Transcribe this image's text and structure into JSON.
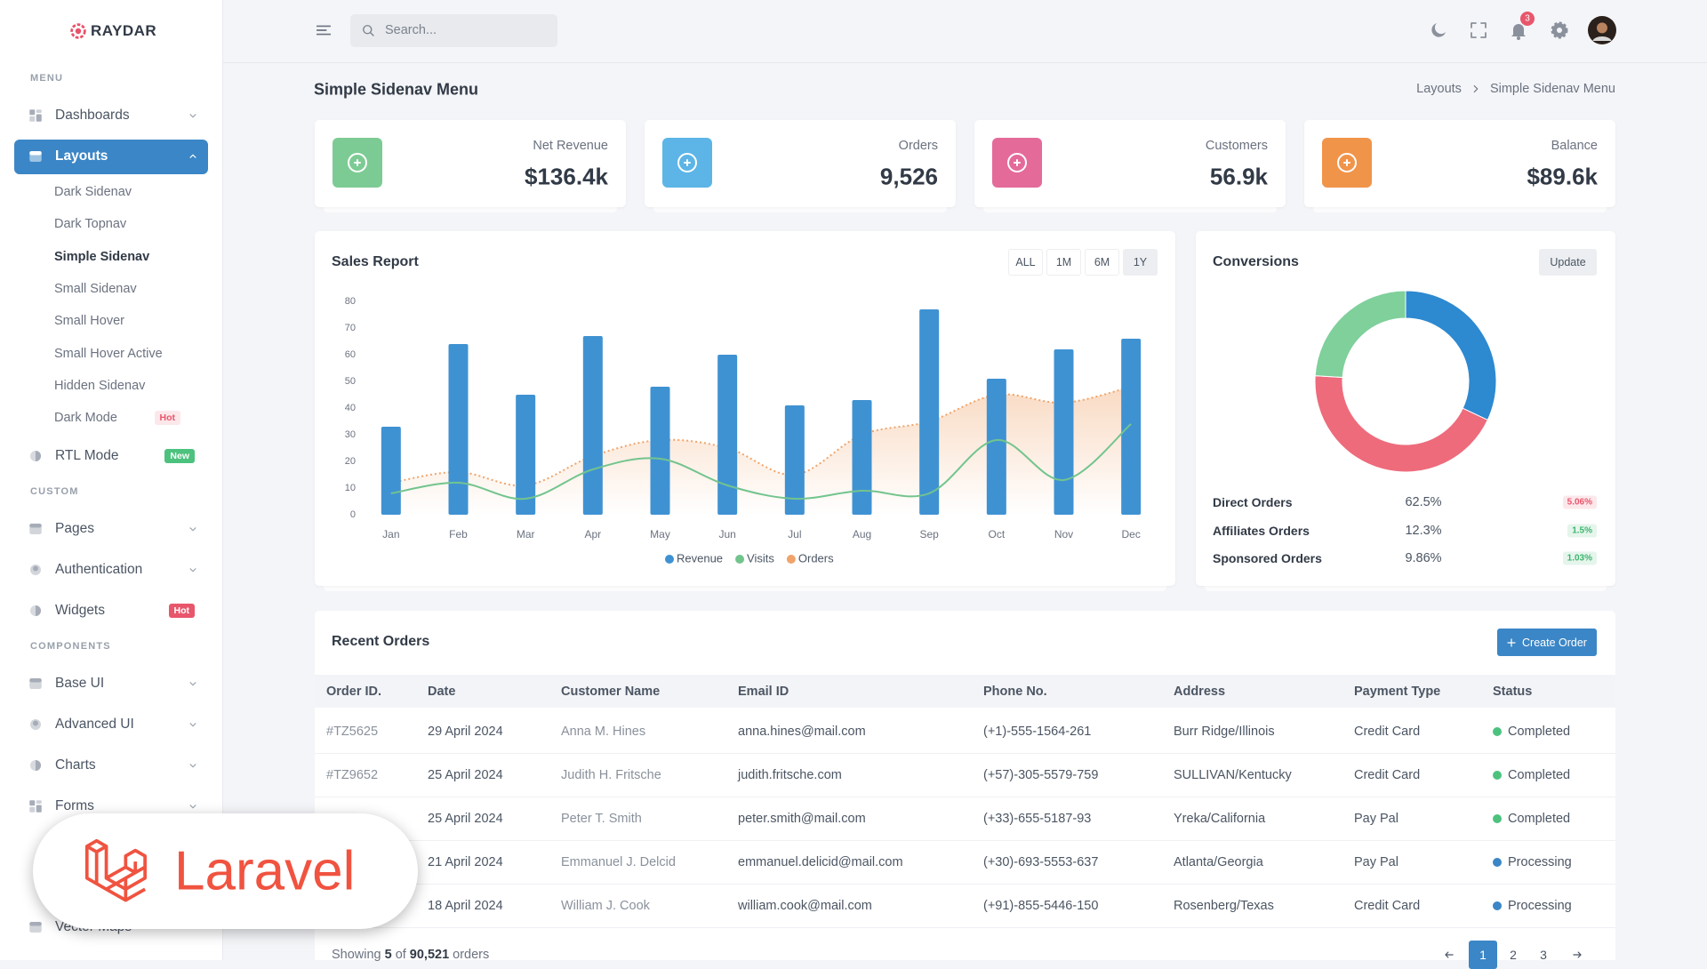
{
  "sidebar": {
    "brand": "RAYDAR",
    "sections": [
      {
        "title": "MENU",
        "items": [
          {
            "label": "Dashboards",
            "chevron": true
          },
          {
            "label": "Layouts",
            "chevron": true,
            "active": true,
            "children": [
              {
                "label": "Dark Sidenav"
              },
              {
                "label": "Dark Topnav"
              },
              {
                "label": "Simple Sidenav",
                "active": true
              },
              {
                "label": "Small Sidenav"
              },
              {
                "label": "Small Hover"
              },
              {
                "label": "Small Hover Active"
              },
              {
                "label": "Hidden Sidenav"
              },
              {
                "label": "Dark Mode",
                "badge": "Hot",
                "badge_color": "#e8566c"
              }
            ]
          },
          {
            "label": "RTL Mode",
            "badge": "New",
            "badge_color": "#4cc27e"
          }
        ]
      },
      {
        "title": "CUSTOM",
        "items": [
          {
            "label": "Pages",
            "chevron": true
          },
          {
            "label": "Authentication",
            "chevron": true
          },
          {
            "label": "Widgets",
            "badge": "Hot",
            "badge_color": "#e8566c"
          }
        ]
      },
      {
        "title": "COMPONENTS",
        "items": [
          {
            "label": "Base UI",
            "chevron": true
          },
          {
            "label": "Advanced UI",
            "chevron": true
          },
          {
            "label": "Charts",
            "chevron": true
          },
          {
            "label": "Forms",
            "chevron": true
          },
          {
            "label": "Vector Maps"
          }
        ]
      }
    ]
  },
  "topbar": {
    "search_placeholder": "Search...",
    "notifications": "3"
  },
  "page": {
    "title": "Simple Sidenav Menu",
    "breadcrumb": [
      "Layouts",
      "Simple Sidenav Menu"
    ]
  },
  "stats": [
    {
      "label": "Net Revenue",
      "value": "$136.4k",
      "color": "#7dcb94"
    },
    {
      "label": "Orders",
      "value": "9,526",
      "color": "#5cb5e6"
    },
    {
      "label": "Customers",
      "value": "56.9k",
      "color": "#e46a9a"
    },
    {
      "label": "Balance",
      "value": "$89.6k",
      "color": "#f0944a"
    }
  ],
  "sales_report": {
    "ranges": [
      "ALL",
      "1M",
      "6M",
      "1Y"
    ]
  },
  "conversions": {
    "button": "Update",
    "rows": [
      {
        "label": "Direct Orders",
        "value": "62.5%",
        "change": "5.06%",
        "change_color": "#e8566c"
      },
      {
        "label": "Affiliates Orders",
        "value": "12.3%",
        "change": "1.5%",
        "change_color": "#3fb56e"
      },
      {
        "label": "Sponsored Orders",
        "value": "9.86%",
        "change": "1.03%",
        "change_color": "#3fb56e"
      }
    ]
  },
  "chart_data": [
    {
      "type": "bar",
      "title": "Sales Report",
      "categories": [
        "Jan",
        "Feb",
        "Mar",
        "Apr",
        "May",
        "Jun",
        "Jul",
        "Aug",
        "Sep",
        "Oct",
        "Nov",
        "Dec"
      ],
      "ylim": [
        0,
        80
      ],
      "yticks": [
        0,
        10,
        20,
        30,
        40,
        50,
        60,
        70,
        80
      ],
      "grid": false,
      "series": [
        {
          "name": "Revenue",
          "type": "bar",
          "color": "#3f92d2",
          "values": [
            33,
            64,
            45,
            67,
            48,
            60,
            41,
            43,
            77,
            51,
            62,
            66
          ]
        },
        {
          "name": "Visits",
          "type": "line",
          "color": "#72c48d",
          "values": [
            8,
            12,
            6,
            17,
            21,
            11,
            6,
            9,
            8,
            28,
            13,
            34
          ]
        },
        {
          "name": "Orders",
          "type": "area",
          "color": "#f0a46a",
          "values": [
            12,
            16,
            11,
            22,
            28,
            25,
            15,
            30,
            35,
            45,
            42,
            48
          ]
        }
      ]
    },
    {
      "type": "donut",
      "title": "Conversions",
      "values": [
        32,
        44,
        24
      ],
      "colors": [
        "#2d89d0",
        "#ee6b7b",
        "#7fd09b"
      ]
    }
  ],
  "orders": {
    "title": "Recent Orders",
    "button": "Create Order",
    "columns": [
      "Order ID.",
      "Date",
      "Customer Name",
      "Email ID",
      "Phone No.",
      "Address",
      "Payment Type",
      "Status"
    ],
    "rows": [
      [
        "#TZ5625",
        "29 April 2024",
        "Anna M. Hines",
        "anna.hines@mail.com",
        "(+1)-555-1564-261",
        "Burr Ridge/Illinois",
        "Credit Card",
        "Completed"
      ],
      [
        "#TZ9652",
        "25 April 2024",
        "Judith H. Fritsche",
        "judith.fritsche.com",
        "(+57)-305-5579-759",
        "SULLIVAN/Kentucky",
        "Credit Card",
        "Completed"
      ],
      [
        null,
        "25 April 2024",
        "Peter T. Smith",
        "peter.smith@mail.com",
        "(+33)-655-5187-93",
        "Yreka/California",
        "Pay Pal",
        "Completed"
      ],
      [
        null,
        "21 April 2024",
        "Emmanuel J. Delcid",
        "emmanuel.delicid@mail.com",
        "(+30)-693-5553-637",
        "Atlanta/Georgia",
        "Pay Pal",
        "Processing"
      ],
      [
        null,
        "18 April 2024",
        "William J. Cook",
        "william.cook@mail.com",
        "(+91)-855-5446-150",
        "Rosenberg/Texas",
        "Credit Card",
        "Processing"
      ]
    ],
    "status_colors": [
      "#4cc27e",
      "#4cc27e",
      "#4cc27e",
      "#3b86c6",
      "#3b86c6"
    ],
    "footer": {
      "prefix": "Showing",
      "shown": "5",
      "middle": "of",
      "total": "90,521",
      "suffix": "orders"
    },
    "pages": [
      "1",
      "2",
      "3"
    ]
  },
  "watermark": "Laravel"
}
